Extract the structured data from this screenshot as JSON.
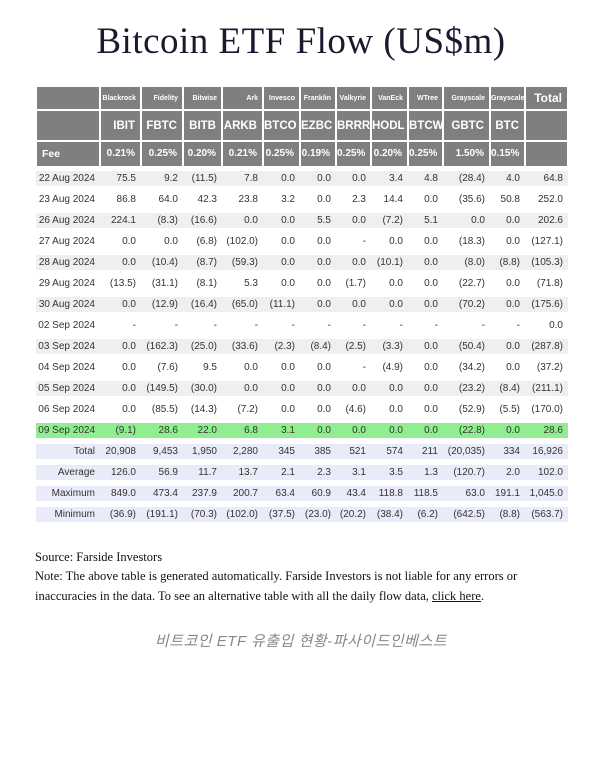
{
  "title": "Bitcoin ETF Flow (US$m)",
  "colors": {
    "header_bg": "#7f7f7f",
    "negative_text": "#e8352d",
    "highlight_row": "#90ee90",
    "summary_row": "#e9ecf8",
    "stripe_row": "#efefef",
    "title_text": "#1a1a2e"
  },
  "table": {
    "providers": [
      "Blackrock",
      "Fidelity",
      "Bitwise",
      "Ark",
      "Invesco",
      "Franklin",
      "Valkyrie",
      "VanEck",
      "WTree",
      "Grayscale",
      "Grayscale"
    ],
    "total_label": "Total",
    "tickers": [
      "IBIT",
      "FBTC",
      "BITB",
      "ARKB",
      "BTCO",
      "EZBC",
      "BRRR",
      "HODL",
      "BTCW",
      "GBTC",
      "BTC"
    ],
    "fee_label": "Fee",
    "fees": [
      "0.21%",
      "0.25%",
      "0.20%",
      "0.21%",
      "0.25%",
      "0.19%",
      "0.25%",
      "0.20%",
      "0.25%",
      "1.50%",
      "0.15%"
    ],
    "rows": [
      {
        "date": "22 Aug 2024",
        "highlight": false,
        "values": [
          "75.5",
          "9.2",
          "(11.5)",
          "7.8",
          "0.0",
          "0.0",
          "0.0",
          "3.4",
          "4.8",
          "(28.4)",
          "4.0",
          "64.8"
        ]
      },
      {
        "date": "23 Aug 2024",
        "highlight": false,
        "values": [
          "86.8",
          "64.0",
          "42.3",
          "23.8",
          "3.2",
          "0.0",
          "2.3",
          "14.4",
          "0.0",
          "(35.6)",
          "50.8",
          "252.0"
        ]
      },
      {
        "date": "26 Aug 2024",
        "highlight": false,
        "values": [
          "224.1",
          "(8.3)",
          "(16.6)",
          "0.0",
          "0.0",
          "5.5",
          "0.0",
          "(7.2)",
          "5.1",
          "0.0",
          "0.0",
          "202.6"
        ]
      },
      {
        "date": "27 Aug 2024",
        "highlight": false,
        "values": [
          "0.0",
          "0.0",
          "(6.8)",
          "(102.0)",
          "0.0",
          "0.0",
          "-",
          "0.0",
          "0.0",
          "(18.3)",
          "0.0",
          "(127.1)"
        ]
      },
      {
        "date": "28 Aug 2024",
        "highlight": false,
        "values": [
          "0.0",
          "(10.4)",
          "(8.7)",
          "(59.3)",
          "0.0",
          "0.0",
          "0.0",
          "(10.1)",
          "0.0",
          "(8.0)",
          "(8.8)",
          "(105.3)"
        ]
      },
      {
        "date": "29 Aug 2024",
        "highlight": false,
        "values": [
          "(13.5)",
          "(31.1)",
          "(8.1)",
          "5.3",
          "0.0",
          "0.0",
          "(1.7)",
          "0.0",
          "0.0",
          "(22.7)",
          "0.0",
          "(71.8)"
        ]
      },
      {
        "date": "30 Aug 2024",
        "highlight": false,
        "values": [
          "0.0",
          "(12.9)",
          "(16.4)",
          "(65.0)",
          "(11.1)",
          "0.0",
          "0.0",
          "0.0",
          "0.0",
          "(70.2)",
          "0.0",
          "(175.6)"
        ]
      },
      {
        "date": "02 Sep 2024",
        "highlight": false,
        "values": [
          "-",
          "-",
          "-",
          "-",
          "-",
          "-",
          "-",
          "-",
          "-",
          "-",
          "-",
          "0.0"
        ]
      },
      {
        "date": "03 Sep 2024",
        "highlight": false,
        "values": [
          "0.0",
          "(162.3)",
          "(25.0)",
          "(33.6)",
          "(2.3)",
          "(8.4)",
          "(2.5)",
          "(3.3)",
          "0.0",
          "(50.4)",
          "0.0",
          "(287.8)"
        ]
      },
      {
        "date": "04 Sep 2024",
        "highlight": false,
        "values": [
          "0.0",
          "(7.6)",
          "9.5",
          "0.0",
          "0.0",
          "0.0",
          "-",
          "(4.9)",
          "0.0",
          "(34.2)",
          "0.0",
          "(37.2)"
        ]
      },
      {
        "date": "05 Sep 2024",
        "highlight": false,
        "values": [
          "0.0",
          "(149.5)",
          "(30.0)",
          "0.0",
          "0.0",
          "0.0",
          "0.0",
          "0.0",
          "0.0",
          "(23.2)",
          "(8.4)",
          "(211.1)"
        ]
      },
      {
        "date": "06 Sep 2024",
        "highlight": false,
        "values": [
          "0.0",
          "(85.5)",
          "(14.3)",
          "(7.2)",
          "0.0",
          "0.0",
          "(4.6)",
          "0.0",
          "0.0",
          "(52.9)",
          "(5.5)",
          "(170.0)"
        ]
      },
      {
        "date": "09 Sep 2024",
        "highlight": true,
        "values": [
          "(9.1)",
          "28.6",
          "22.0",
          "6.8",
          "3.1",
          "0.0",
          "0.0",
          "0.0",
          "0.0",
          "(22.8)",
          "0.0",
          "28.6"
        ]
      }
    ],
    "summary_rows": [
      {
        "label": "Total",
        "values": [
          "20,908",
          "9,453",
          "1,950",
          "2,280",
          "345",
          "385",
          "521",
          "574",
          "211",
          "(20,035)",
          "334",
          "16,926"
        ]
      },
      {
        "label": "Average",
        "values": [
          "126.0",
          "56.9",
          "11.7",
          "13.7",
          "2.1",
          "2.3",
          "3.1",
          "3.5",
          "1.3",
          "(120.7)",
          "2.0",
          "102.0"
        ]
      },
      {
        "label": "Maximum",
        "values": [
          "849.0",
          "473.4",
          "237.9",
          "200.7",
          "63.4",
          "60.9",
          "43.4",
          "118.8",
          "118.5",
          "63.0",
          "191.1",
          "1,045.0"
        ]
      },
      {
        "label": "Minimum",
        "values": [
          "(36.9)",
          "(191.1)",
          "(70.3)",
          "(102.0)",
          "(37.5)",
          "(23.0)",
          "(20.2)",
          "(38.4)",
          "(6.2)",
          "(642.5)",
          "(8.8)",
          "(563.7)"
        ]
      }
    ]
  },
  "footer": {
    "source": "Source: Farside Investors",
    "note_before_link": "Note: The above table is generated automatically. Farside Investors is not liable for any errors or inaccuracies in the data. To see an alternative table with all the daily flow data, ",
    "link_text": "click here",
    "note_after_link": "."
  },
  "caption": "비트코인 ETF 유출입 현황-파사이드인베스트"
}
